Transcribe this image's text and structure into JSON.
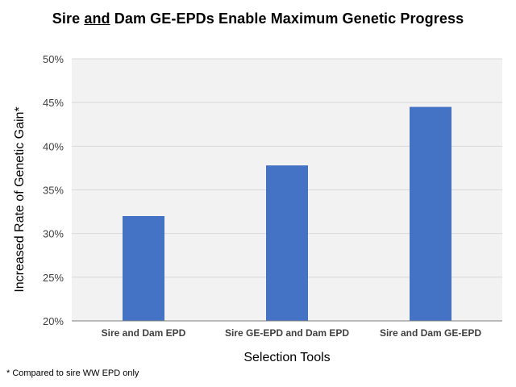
{
  "chart_data": {
    "type": "bar",
    "title": {
      "prefix": "Sire ",
      "underlined": "and",
      "suffix": " Dam GE-EPDs Enable Maximum Genetic Progress"
    },
    "xlabel": "Selection Tools",
    "ylabel": "Increased Rate of Genetic Gain*",
    "categories": [
      "Sire and Dam EPD",
      "Sire GE-EPD and Dam EPD",
      "Sire and Dam GE-EPD"
    ],
    "values": [
      0.32,
      0.378,
      0.445
    ],
    "ylim": [
      0.2,
      0.5
    ],
    "yticks": [
      0.2,
      0.25,
      0.3,
      0.35,
      0.4,
      0.45,
      0.5
    ],
    "ytick_labels": [
      "20%",
      "25%",
      "30%",
      "35%",
      "40%",
      "45%",
      "50%"
    ],
    "grid": true,
    "legend": "none",
    "colors": {
      "bar": "#4472C4",
      "plot_background": "#F2F2F2",
      "gridline": "#D9D9D9",
      "axis": "#7F7F7F"
    }
  },
  "footnote": "* Compared to sire WW EPD only"
}
